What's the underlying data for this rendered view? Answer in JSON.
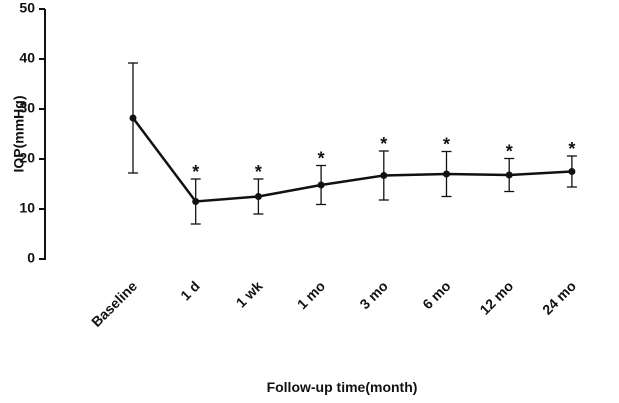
{
  "chart_data": {
    "type": "line",
    "x_label": "Follow-up time(month)",
    "y_label": "IOP(mmHg)",
    "categories": [
      "Baseline",
      "1 d",
      "1 wk",
      "1 mo",
      "3 mo",
      "6 mo",
      "12 mo",
      "24 mo"
    ],
    "values": [
      28.2,
      11.5,
      12.5,
      14.8,
      16.7,
      17.0,
      16.8,
      17.5
    ],
    "errors": [
      11.0,
      4.5,
      3.5,
      3.9,
      4.9,
      4.5,
      3.3,
      3.1
    ],
    "annotations": [
      null,
      "*",
      "*",
      "*",
      "*",
      "*",
      "*",
      "*"
    ],
    "color": "#111111",
    "ylim": [
      0,
      50
    ],
    "yticks": [
      0,
      10,
      20,
      30,
      40,
      50
    ],
    "grid": false
  }
}
